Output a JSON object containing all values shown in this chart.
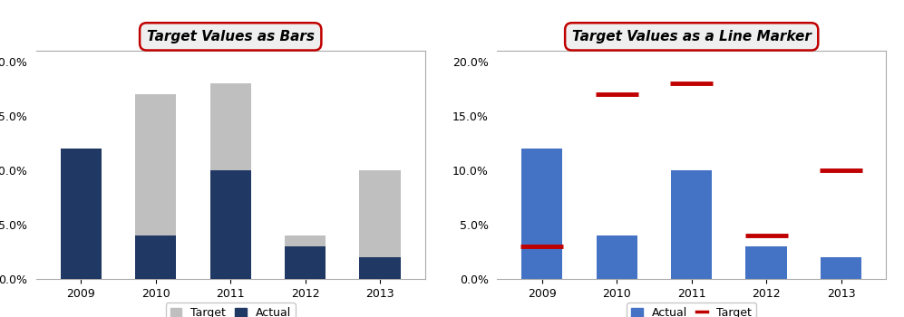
{
  "years": [
    "2009",
    "2010",
    "2011",
    "2012",
    "2013"
  ],
  "actual": [
    0.12,
    0.04,
    0.1,
    0.03,
    0.02
  ],
  "target": [
    0.03,
    0.17,
    0.18,
    0.04,
    0.1
  ],
  "title1": "Target Values as Bars",
  "title2": "Target Values as a Line Marker",
  "color_target_bar": "#BFBFBF",
  "color_actual_bar1": "#1F3864",
  "color_actual_bar2": "#4F6228",
  "color_actual_bar2_real": "#4472C4",
  "color_target_marker": "#C00000",
  "ylim": [
    0.0,
    0.21
  ],
  "yticks": [
    0.0,
    0.05,
    0.1,
    0.15,
    0.2
  ],
  "ytick_labels": [
    "0.0%",
    "5.0%",
    "10.0%",
    "15.0%",
    "20.0%"
  ],
  "title_box_color": "#C00000",
  "title_fill_color": "#EFEFEF",
  "title_fontsize": 11,
  "axis_bg": "#FFFFFF",
  "bar_width": 0.55,
  "fig_bg": "#FFFFFF",
  "spine_color": "#AAAAAA",
  "tick_fontsize": 9
}
